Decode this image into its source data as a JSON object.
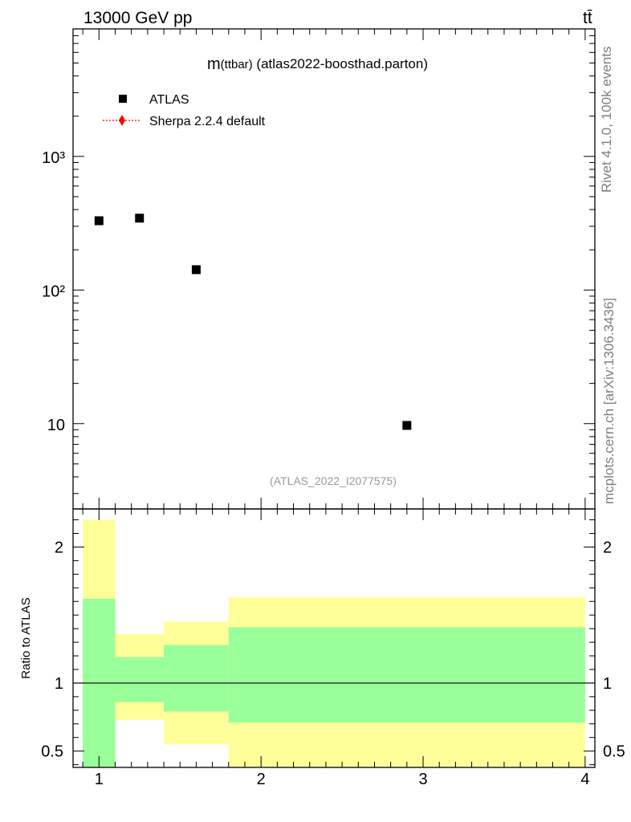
{
  "header": {
    "energy_label": "13000 GeV pp",
    "process_label": "tt̄"
  },
  "side_labels": {
    "rivet": "Rivet 4.1.0,  100k events",
    "mcplots": "mcplots.cern.ch [arXiv:1306.3436]"
  },
  "chart_data": [
    {
      "type": "scatter",
      "title_main": "m",
      "title_sub": "(ttbar)",
      "title_rest": " (atlas2022-boosthad.parton)",
      "analysis_id": "(ATLAS_2022_I2077575)",
      "xlabel": "",
      "ylabel": "",
      "xlim": [
        0.84,
        4.06
      ],
      "ylim": [
        2.3,
        9000
      ],
      "yscale": "log",
      "y_ticks": [
        10,
        100,
        1000
      ],
      "y_tick_labels": [
        "10",
        "10²",
        "10³"
      ],
      "legend_position": "top-left",
      "series": [
        {
          "name": "ATLAS",
          "marker": "square",
          "color": "#000000",
          "x": [
            1.0,
            1.25,
            1.6,
            2.9
          ],
          "y": [
            330,
            345,
            142,
            9.7
          ]
        },
        {
          "name": "Sherpa 2.2.4 default",
          "marker": "diamond",
          "color": "#ff0000",
          "x": [],
          "y": []
        }
      ]
    },
    {
      "type": "area",
      "ylabel": "Ratio to ATLAS",
      "xlim": [
        0.84,
        4.06
      ],
      "ylim": [
        0.38,
        2.28
      ],
      "y_ticks": [
        0.5,
        1,
        2
      ],
      "y_tick_labels": [
        "0.5",
        "1",
        "2"
      ],
      "x_ticks": [
        1,
        2,
        3,
        4
      ],
      "x_tick_labels": [
        "1",
        "2",
        "3",
        "4"
      ],
      "reference_line": 1,
      "colors": {
        "outer_band": "#ffff99",
        "inner_band": "#99ff99"
      },
      "bins": [
        {
          "xlo": 0.9,
          "xhi": 1.1,
          "outer": [
            0.38,
            2.2
          ],
          "inner": [
            0.38,
            1.62
          ]
        },
        {
          "xlo": 1.1,
          "xhi": 1.4,
          "outer": [
            0.73,
            1.36
          ],
          "inner": [
            0.86,
            1.19
          ]
        },
        {
          "xlo": 1.4,
          "xhi": 1.8,
          "outer": [
            0.55,
            1.45
          ],
          "inner": [
            0.79,
            1.28
          ]
        },
        {
          "xlo": 1.8,
          "xhi": 4.0,
          "outer": [
            0.38,
            1.63
          ],
          "inner": [
            0.71,
            1.41
          ]
        }
      ]
    }
  ]
}
